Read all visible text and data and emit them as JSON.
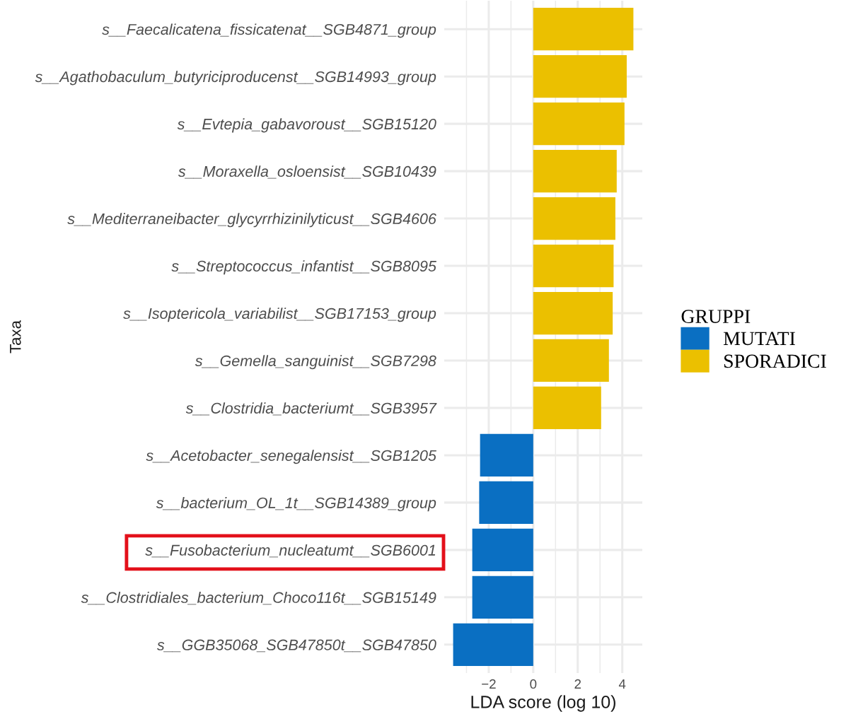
{
  "chart_data": {
    "type": "bar",
    "orientation": "horizontal",
    "xlabel": "LDA score (log 10)",
    "ylabel": "Taxa",
    "legend_title": "GRUPPI",
    "categories": [
      "s__Faecalicatena_fissicatenat__SGB4871_group",
      "s__Agathobaculum_butyriciproducenst__SGB14993_group",
      "s__Evtepia_gabavoroust__SGB15120",
      "s__Moraxella_osloensist__SGB10439",
      "s__Mediterraneibacter_glycyrrhizinilyticust__SGB4606",
      "s__Streptococcus_infantist__SGB8095",
      "s__Isoptericola_variabilist__SGB17153_group",
      "s__Gemella_sanguinist__SGB7298",
      "s__Clostridia_bacteriumt__SGB3957",
      "s__Acetobacter_senegalensist__SGB1205",
      "s__bacterium_OL_1t__SGB14389_group",
      "s__Fusobacterium_nucleatumt__SGB6001",
      "s__Clostridiales_bacterium_Choco116t__SGB15149",
      "s__GGB35068_SGB47850t__SGB47850"
    ],
    "series": [
      {
        "name": "MUTATI",
        "color": "#0a6fc2",
        "values": [
          null,
          null,
          null,
          null,
          null,
          null,
          null,
          null,
          null,
          -2.39,
          -2.43,
          -2.74,
          -2.74,
          -3.6
        ]
      },
      {
        "name": "SPORADICI",
        "color": "#ebc000",
        "values": [
          4.5,
          4.2,
          4.1,
          3.75,
          3.69,
          3.61,
          3.57,
          3.4,
          3.05,
          null,
          null,
          null,
          null,
          null
        ]
      }
    ],
    "xlim": [
      -4.0,
      4.9
    ],
    "xticks": [
      {
        "value": -3,
        "label": null
      },
      {
        "value": -2,
        "label": "−2"
      },
      {
        "value": -1,
        "label": null
      },
      0,
      {
        "value": 1,
        "label": null
      },
      2,
      {
        "value": 3,
        "label": null
      },
      4
    ],
    "grid": true,
    "legend": "right"
  }
}
